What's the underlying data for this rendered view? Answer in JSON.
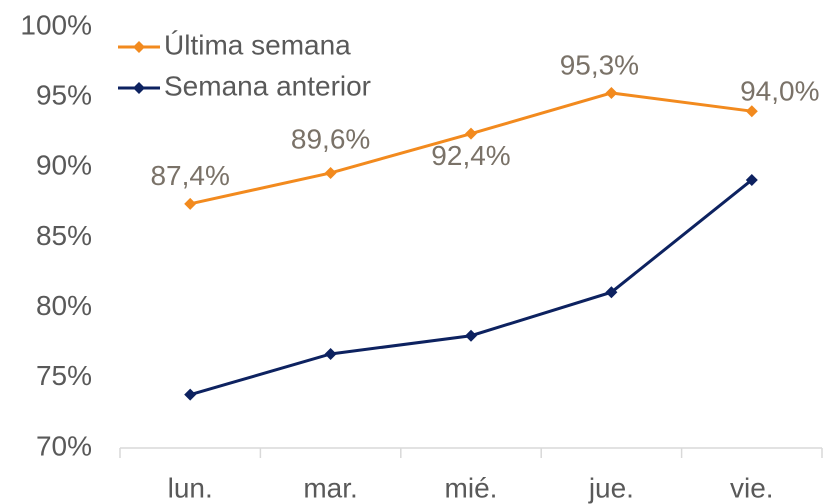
{
  "chart_data": {
    "type": "line",
    "categories": [
      "lun.",
      "mar.",
      "mié.",
      "jue.",
      "vie."
    ],
    "series": [
      {
        "name": "Última semana",
        "color": "#f28a1e",
        "values": [
          87.4,
          89.6,
          92.4,
          95.3,
          94.0
        ],
        "value_labels": [
          "87,4%",
          "89,6%",
          "92,4%",
          "95,3%",
          "94,0%"
        ]
      },
      {
        "name": "Semana anterior",
        "color": "#0d2260",
        "values": [
          73.8,
          76.7,
          78.0,
          81.1,
          89.1
        ]
      }
    ],
    "ylim": [
      70,
      100
    ],
    "yticks": [
      {
        "value": 70,
        "label": "70%"
      },
      {
        "value": 75,
        "label": "75%"
      },
      {
        "value": 80,
        "label": "80%"
      },
      {
        "value": 85,
        "label": "85%"
      },
      {
        "value": 90,
        "label": "90%"
      },
      {
        "value": 95,
        "label": "95%"
      },
      {
        "value": 100,
        "label": "100%"
      }
    ],
    "legend": "top-left"
  }
}
